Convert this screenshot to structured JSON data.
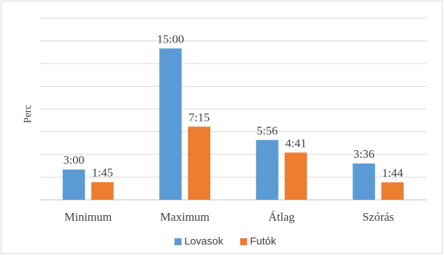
{
  "chart_data": {
    "type": "bar",
    "title": "",
    "xlabel": "",
    "ylabel": "Perc",
    "categories": [
      "Minimum",
      "Maximum",
      "Átlag",
      "Szórás"
    ],
    "series": [
      {
        "name": "Lovasok",
        "color": "#5b9bd5",
        "values": [
          3.0,
          15.0,
          5.933,
          3.6
        ],
        "labels": [
          "3:00",
          "15:00",
          "5:56",
          "3:36"
        ]
      },
      {
        "name": "Futók",
        "color": "#ed7d31",
        "values": [
          1.75,
          7.25,
          4.683,
          1.733
        ],
        "labels": [
          "1:45",
          "7:15",
          "4:41",
          "1:44"
        ]
      }
    ],
    "ylim": [
      0,
      18
    ],
    "grid": true,
    "legend": "bottom-center",
    "gridline_count": 8
  }
}
